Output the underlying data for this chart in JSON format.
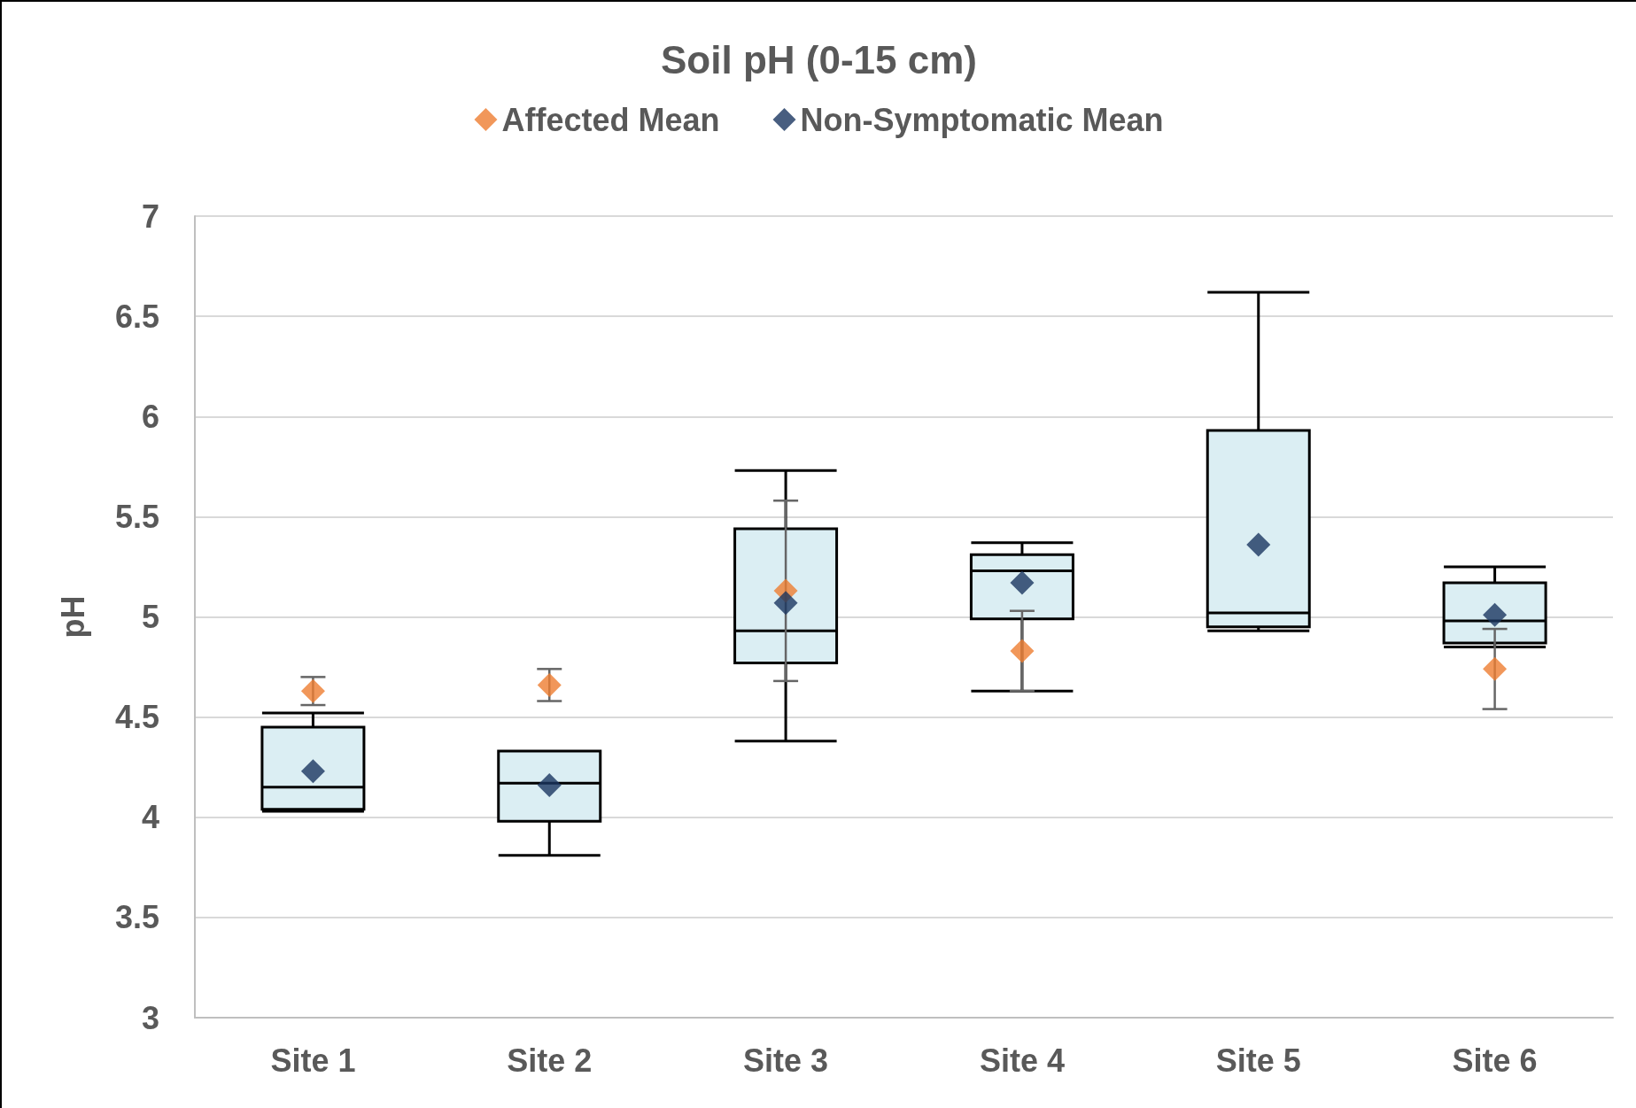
{
  "chart_data": {
    "type": "box",
    "title": "Soil pH (0-15 cm)",
    "ylabel": "pH",
    "categories": [
      "Site 1",
      "Site 2",
      "Site 3",
      "Site 4",
      "Site 5",
      "Site 6"
    ],
    "series": [
      {
        "type": "box",
        "color": "#dbeef3",
        "boxes": [
          {
            "low": 4.03,
            "q1": 4.04,
            "median": 4.15,
            "q3": 4.45,
            "high": 4.52
          },
          {
            "low": 3.81,
            "q1": 3.98,
            "median": 4.17,
            "q3": 4.33,
            "high": 4.33
          },
          {
            "low": 4.38,
            "q1": 4.77,
            "median": 4.93,
            "q3": 5.44,
            "high": 5.73
          },
          {
            "low": 4.63,
            "q1": 4.99,
            "median": 5.23,
            "q3": 5.31,
            "high": 5.37
          },
          {
            "low": 4.93,
            "q1": 4.95,
            "median": 5.02,
            "q3": 5.93,
            "high": 6.62
          },
          {
            "low": 4.85,
            "q1": 4.87,
            "median": 4.98,
            "q3": 5.17,
            "high": 5.25
          }
        ]
      },
      {
        "type": "scatter",
        "name": "Affected Mean",
        "color": "#ed7d31",
        "marker": "diamond",
        "x": [
          "Site 1",
          "Site 2",
          "Site 3",
          "Site 4",
          "Site 5",
          "Site 6"
        ],
        "values": [
          4.63,
          4.66,
          5.13,
          4.83,
          null,
          4.74
        ],
        "errors": [
          0.07,
          0.08,
          0.45,
          0.2,
          null,
          0.2
        ]
      },
      {
        "type": "scatter",
        "name": "Non-Symptomatic Mean",
        "color": "#1a3660",
        "marker": "diamond",
        "x": [
          "Site 1",
          "Site 2",
          "Site 3",
          "Site 4",
          "Site 5",
          "Site 6"
        ],
        "values": [
          4.23,
          4.16,
          5.07,
          5.17,
          5.36,
          5.01
        ]
      }
    ],
    "ylim": [
      3,
      7
    ],
    "yticks": [
      3,
      3.5,
      4,
      4.5,
      5,
      5.5,
      6,
      6.5,
      7
    ],
    "grid": "y",
    "legend": "top"
  }
}
